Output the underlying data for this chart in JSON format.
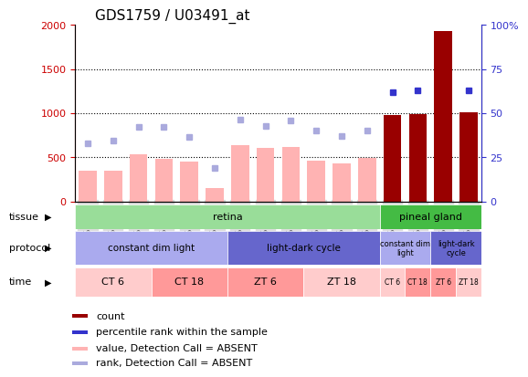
{
  "title": "GDS1759 / U03491_at",
  "samples": [
    "GSM53328",
    "GSM53329",
    "GSM53330",
    "GSM53337",
    "GSM53338",
    "GSM53339",
    "GSM53325",
    "GSM53326",
    "GSM53327",
    "GSM53334",
    "GSM53335",
    "GSM53336",
    "GSM53332",
    "GSM53340",
    "GSM53331",
    "GSM53333"
  ],
  "bar_values": [
    350,
    350,
    530,
    480,
    450,
    155,
    640,
    610,
    615,
    460,
    430,
    490,
    980,
    990,
    1930,
    1010
  ],
  "bar_is_present": [
    false,
    false,
    false,
    false,
    false,
    false,
    false,
    false,
    false,
    false,
    false,
    false,
    true,
    true,
    true,
    true
  ],
  "rank_dots_left_axis": [
    660,
    685,
    845,
    845,
    735,
    375,
    930,
    855,
    920,
    800,
    745,
    800,
    1235,
    1255,
    null,
    1255
  ],
  "rank_dots_present": [
    false,
    false,
    false,
    false,
    false,
    false,
    false,
    false,
    false,
    false,
    false,
    false,
    true,
    true,
    false,
    true
  ],
  "ylim_left": [
    0,
    2000
  ],
  "yticks_left": [
    0,
    500,
    1000,
    1500,
    2000
  ],
  "yticks_right_labels": [
    "0",
    "25",
    "50",
    "75",
    "100%"
  ],
  "yticks_right_vals": [
    0,
    500,
    1000,
    1500,
    2000
  ],
  "ylabel_left_color": "#cc0000",
  "ylabel_right_color": "#3333cc",
  "bar_absent_color": "#ffb3b3",
  "bar_present_color": "#990000",
  "dot_absent_color": "#aaaadd",
  "dot_present_color": "#3333cc",
  "grid_color": "black",
  "grid_lines": [
    500,
    1000,
    1500
  ],
  "tissue_sections": [
    {
      "label": "retina",
      "start": 0,
      "end": 12,
      "color": "#99dd99"
    },
    {
      "label": "pineal gland",
      "start": 12,
      "end": 16,
      "color": "#44bb44"
    }
  ],
  "protocol_sections": [
    {
      "label": "constant dim light",
      "start": 0,
      "end": 6,
      "color": "#aaaaee"
    },
    {
      "label": "light-dark cycle",
      "start": 6,
      "end": 12,
      "color": "#6666cc"
    },
    {
      "label": "constant dim\nlight",
      "start": 12,
      "end": 14,
      "color": "#aaaaee"
    },
    {
      "label": "light-dark\ncycle",
      "start": 14,
      "end": 16,
      "color": "#6666cc"
    }
  ],
  "time_sections": [
    {
      "label": "CT 6",
      "start": 0,
      "end": 3,
      "color": "#ffcccc"
    },
    {
      "label": "CT 18",
      "start": 3,
      "end": 6,
      "color": "#ff9999"
    },
    {
      "label": "ZT 6",
      "start": 6,
      "end": 9,
      "color": "#ff9999"
    },
    {
      "label": "ZT 18",
      "start": 9,
      "end": 12,
      "color": "#ffcccc"
    },
    {
      "label": "CT 6",
      "start": 12,
      "end": 13,
      "color": "#ffcccc"
    },
    {
      "label": "CT 18",
      "start": 13,
      "end": 14,
      "color": "#ff9999"
    },
    {
      "label": "ZT 6",
      "start": 14,
      "end": 15,
      "color": "#ff9999"
    },
    {
      "label": "ZT 18",
      "start": 15,
      "end": 16,
      "color": "#ffcccc"
    }
  ],
  "row_label_fontsize": 8,
  "legend_colors": [
    "#990000",
    "#3333cc",
    "#ffb3b3",
    "#aaaadd"
  ],
  "legend_labels": [
    "count",
    "percentile rank within the sample",
    "value, Detection Call = ABSENT",
    "rank, Detection Call = ABSENT"
  ],
  "legend_fontsize": 8,
  "tick_label_fontsize": 7,
  "title_fontsize": 11,
  "xtick_bg_color": "#dddddd"
}
